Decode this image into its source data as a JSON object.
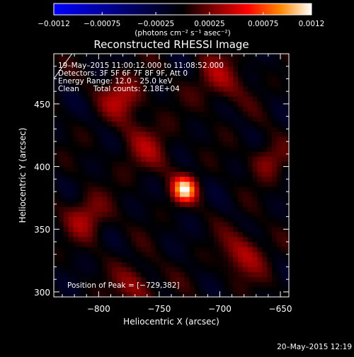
{
  "chart_data": {
    "type": "heatmap",
    "title": "Reconstructed RHESSI Image",
    "xlabel": "Heliocentric X (arcsec)",
    "ylabel": "Heliocentric Y (arcsec)",
    "xlim": [
      -837,
      -643
    ],
    "ylim": [
      296,
      490
    ],
    "x_ticks": [
      -800,
      -750,
      -700,
      -650
    ],
    "y_ticks": [
      300,
      350,
      400,
      450
    ],
    "x_tick_labels": [
      "−800",
      "−750",
      "−700",
      "−650"
    ],
    "y_tick_labels": [
      "300",
      "350",
      "400",
      "450"
    ],
    "colorbar": {
      "range": [
        -0.0012,
        0.0012
      ],
      "ticks": [
        -0.0012,
        -0.00075,
        -0.00025,
        0.00025,
        0.00075,
        0.0012
      ],
      "tick_labels": [
        "−0.0012",
        "−0.00075",
        "−0.00025",
        "0.00025",
        "0.00075",
        "0.0012"
      ],
      "label": "(photons cm⁻² s⁻¹ asec⁻²)",
      "colors": [
        "#0000ff",
        "#000000",
        "#800000",
        "#ff0000",
        "#ff8800",
        "#ffffff"
      ]
    },
    "annotations": {
      "time_range": "19–May–2015 11:00:12.000 to 11:08:52.000",
      "detectors": "Detectors: 3F 5F 6F 7F 8F 9F, Att 0",
      "energy_range": "Energy Range: 12.0 – 25.0 keV",
      "method_counts": "Clean      Total counts: 2.18E+04",
      "peak": "Position of Peak = [−729,382]"
    },
    "peak_position": [
      -729,
      382
    ],
    "sources": [
      {
        "x": -729,
        "y": 382,
        "amplitude": 0.00115,
        "sigma": 7
      },
      {
        "x": -780,
        "y": 455,
        "amplitude": 0.00045,
        "sigma": 12
      },
      {
        "x": -700,
        "y": 470,
        "amplitude": 0.00035,
        "sigma": 14
      },
      {
        "x": -680,
        "y": 330,
        "amplitude": 0.0004,
        "sigma": 13
      },
      {
        "x": -770,
        "y": 305,
        "amplitude": 0.00035,
        "sigma": 12
      },
      {
        "x": -810,
        "y": 360,
        "amplitude": 0.0004,
        "sigma": 12
      },
      {
        "x": -660,
        "y": 405,
        "amplitude": 0.00035,
        "sigma": 10
      },
      {
        "x": -760,
        "y": 415,
        "amplitude": 0.0003,
        "sigma": 15
      }
    ],
    "limb_line": [
      [
        -837,
        470
      ],
      [
        -822,
        490
      ]
    ]
  },
  "footer": {
    "timestamp": "20–May–2015 12:19"
  }
}
